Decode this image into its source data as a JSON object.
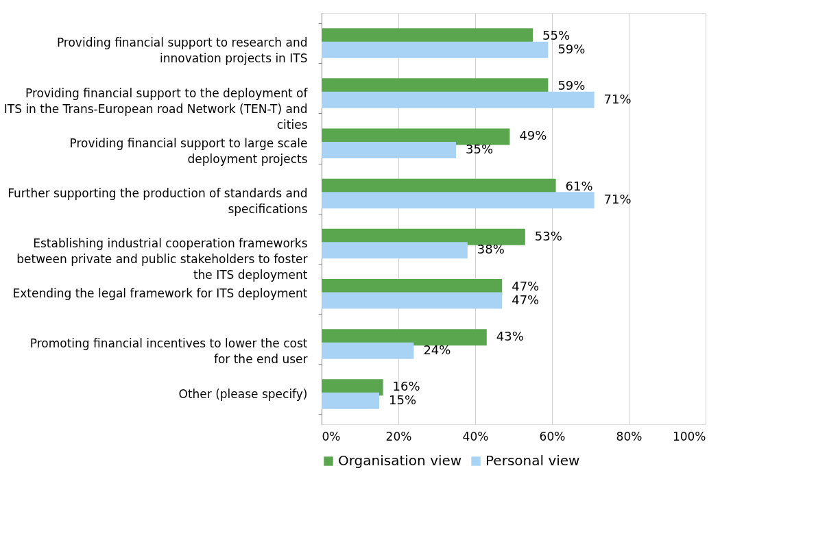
{
  "chart_data": {
    "type": "bar",
    "orientation": "horizontal",
    "categories": [
      "Providing financial support to research and innovation projects in ITS",
      "Providing financial support to the deployment of ITS in the Trans-European road Network (TEN-T) and cities",
      "Providing financial support to large scale deployment projects",
      "Further supporting the production of standards and specifications",
      "Establishing industrial cooperation frameworks between private and public stakeholders to foster the ITS deployment",
      "Extending the legal framework for ITS deployment",
      "Promoting financial incentives to lower the cost for the end user",
      "Other (please specify)"
    ],
    "series": [
      {
        "name": "Organisation view",
        "color": "#5aa64f",
        "values": [
          55,
          59,
          49,
          61,
          53,
          47,
          43,
          16
        ],
        "value_labels": [
          "55%",
          "59%",
          "49%",
          "61%",
          "53%",
          "47%",
          "43%",
          "16%"
        ]
      },
      {
        "name": "Personal view",
        "color": "#a9d3f5",
        "values": [
          59,
          71,
          35,
          71,
          38,
          47,
          24,
          15
        ],
        "value_labels": [
          "59%",
          "71%",
          "35%",
          "71%",
          "38%",
          "47%",
          "24%",
          "15%"
        ]
      }
    ],
    "xlim": [
      0,
      100
    ],
    "xticks": [
      {
        "value": 0,
        "label": "0%"
      },
      {
        "value": 20,
        "label": "20%"
      },
      {
        "value": 40,
        "label": "40%"
      },
      {
        "value": 60,
        "label": "60%"
      },
      {
        "value": 80,
        "label": "80%"
      },
      {
        "value": 100,
        "label": "100%"
      }
    ],
    "grid": "x",
    "legend": "bottom"
  }
}
